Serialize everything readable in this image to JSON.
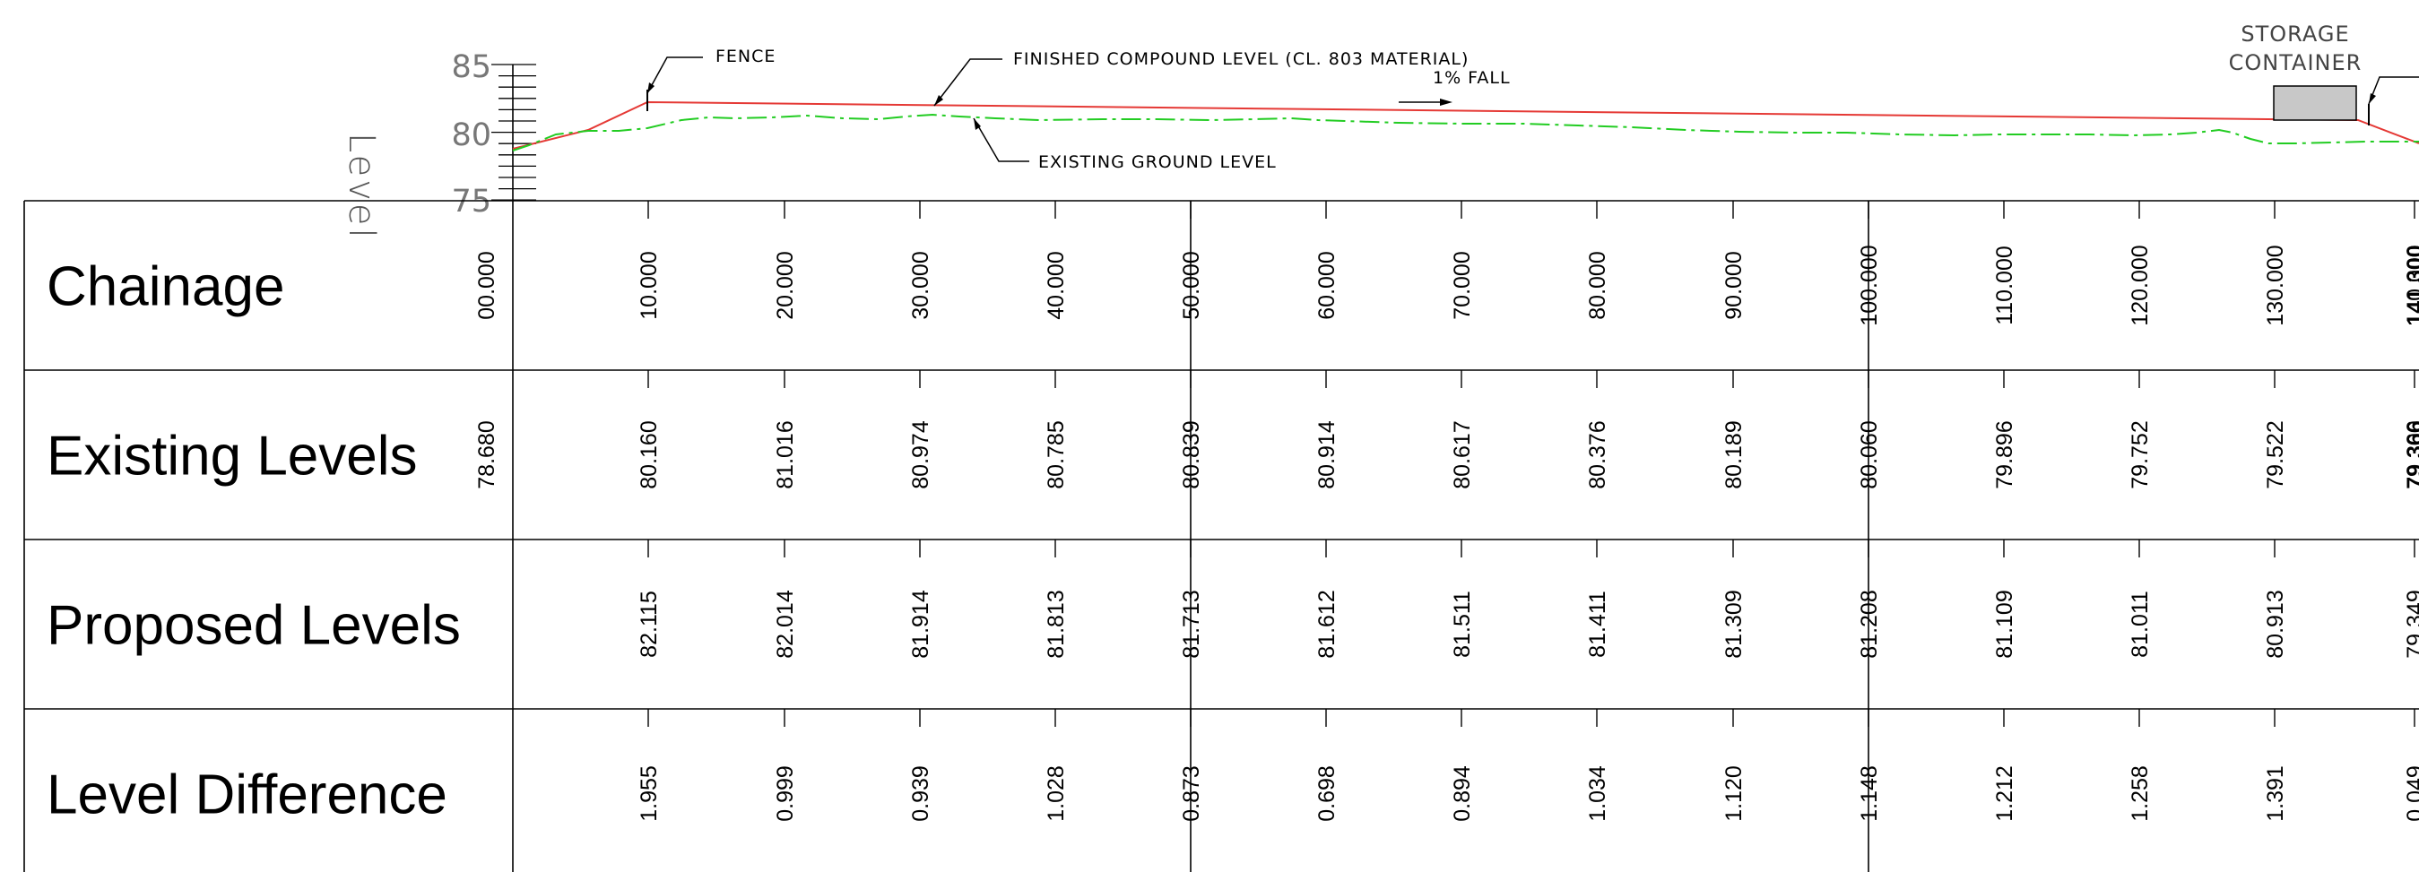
{
  "profile": {
    "axis_label": "Level",
    "axis_ticks": [
      "85",
      "80",
      "75"
    ],
    "annotations": {
      "fence": "FENCE",
      "finished_level": "FINISHED COMPOUND LEVEL (CL. 803 MATERIAL)",
      "fall": "1% FALL",
      "existing_ground": "EXISTING GROUND LEVEL",
      "storage_line1": "STORAGE",
      "storage_line2": "CONTAINER"
    },
    "colors": {
      "proposed_line": "#e53935",
      "existing_line": "#22cc22",
      "container_fill": "#c8c8c8",
      "ink": "#000000"
    }
  },
  "table": {
    "rows": [
      {
        "label": "Chainage",
        "values": [
          "00.000",
          "10.000",
          "20.000",
          "30.000",
          "40.000",
          "50.000",
          "60.000",
          "70.000",
          "80.000",
          "90.000",
          "100.000",
          "110.000",
          "120.000",
          "130.000",
          "140.000"
        ],
        "overlap_value": "141.300"
      },
      {
        "label": "Existing Levels",
        "values": [
          "78.680",
          "80.160",
          "81.016",
          "80.974",
          "80.785",
          "80.839",
          "80.914",
          "80.617",
          "80.376",
          "80.189",
          "80.060",
          "79.896",
          "79.752",
          "79.522",
          "79.300"
        ],
        "overlap_value": "79.366"
      },
      {
        "label": "Proposed Levels",
        "values": [
          "",
          "82.115",
          "82.014",
          "81.914",
          "81.813",
          "81.713",
          "81.612",
          "81.511",
          "81.411",
          "81.309",
          "81.208",
          "81.109",
          "81.011",
          "80.913",
          "79.349"
        ],
        "overlap_value": ""
      },
      {
        "label": "Level Difference",
        "values": [
          "",
          "1.955",
          "0.999",
          "0.939",
          "1.028",
          "0.873",
          "0.698",
          "0.894",
          "1.034",
          "1.120",
          "1.148",
          "1.212",
          "1.258",
          "1.391",
          "0.049"
        ],
        "overlap_value": ""
      }
    ]
  }
}
